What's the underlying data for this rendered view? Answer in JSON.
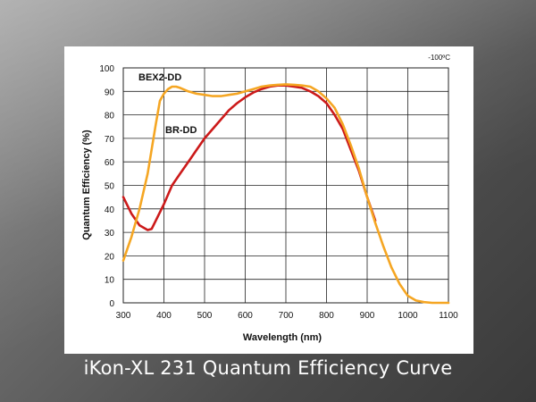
{
  "caption": "iKon-XL 231 Quantum Efficiency Curve",
  "chart_data": {
    "type": "line",
    "title": "",
    "xlabel": "Wavelength (nm)",
    "ylabel": "Quantum Efficiency (%)",
    "xlim": [
      300,
      1100
    ],
    "ylim": [
      0,
      100
    ],
    "xticks": [
      300,
      400,
      500,
      600,
      700,
      800,
      900,
      1000,
      1100
    ],
    "yticks": [
      0,
      10,
      20,
      30,
      40,
      50,
      60,
      70,
      80,
      90,
      100
    ],
    "grid": true,
    "annotation": "-100ºC",
    "series": [
      {
        "name": "BEX2-DD",
        "color": "#f5a623",
        "x": [
          300,
          320,
          340,
          360,
          380,
          390,
          400,
          410,
          420,
          430,
          440,
          460,
          480,
          500,
          520,
          540,
          560,
          580,
          600,
          620,
          640,
          660,
          680,
          700,
          720,
          740,
          760,
          780,
          800,
          820,
          840,
          860,
          880,
          900,
          920,
          940,
          960,
          980,
          1000,
          1020,
          1040,
          1060,
          1080,
          1100
        ],
        "y": [
          18,
          28,
          40,
          55,
          76,
          86,
          89,
          91,
          92,
          92,
          91.5,
          90,
          89,
          88.5,
          88,
          88,
          88.5,
          89,
          90,
          91,
          92,
          92.5,
          92.8,
          93,
          92.8,
          92.5,
          92,
          90,
          87,
          83,
          76,
          67,
          57,
          45,
          34,
          24,
          15,
          8,
          3,
          1,
          0.3,
          0,
          0,
          0
        ]
      },
      {
        "name": "BR-DD",
        "color": "#cc1a1a",
        "x": [
          300,
          320,
          340,
          360,
          370,
          380,
          400,
          420,
          440,
          460,
          480,
          500,
          520,
          540,
          560,
          580,
          600,
          620,
          640,
          660,
          680,
          700,
          720,
          740,
          760,
          780,
          800,
          820,
          840,
          860,
          880,
          900,
          920
        ],
        "y": [
          45,
          38,
          33,
          31,
          31.5,
          35,
          42,
          50,
          55,
          60,
          65,
          70,
          74,
          78,
          82,
          85,
          87.5,
          89.5,
          91,
          92,
          92.5,
          92.5,
          92,
          91.5,
          90,
          88,
          85,
          80,
          74,
          65,
          56,
          45,
          35
        ]
      }
    ]
  }
}
